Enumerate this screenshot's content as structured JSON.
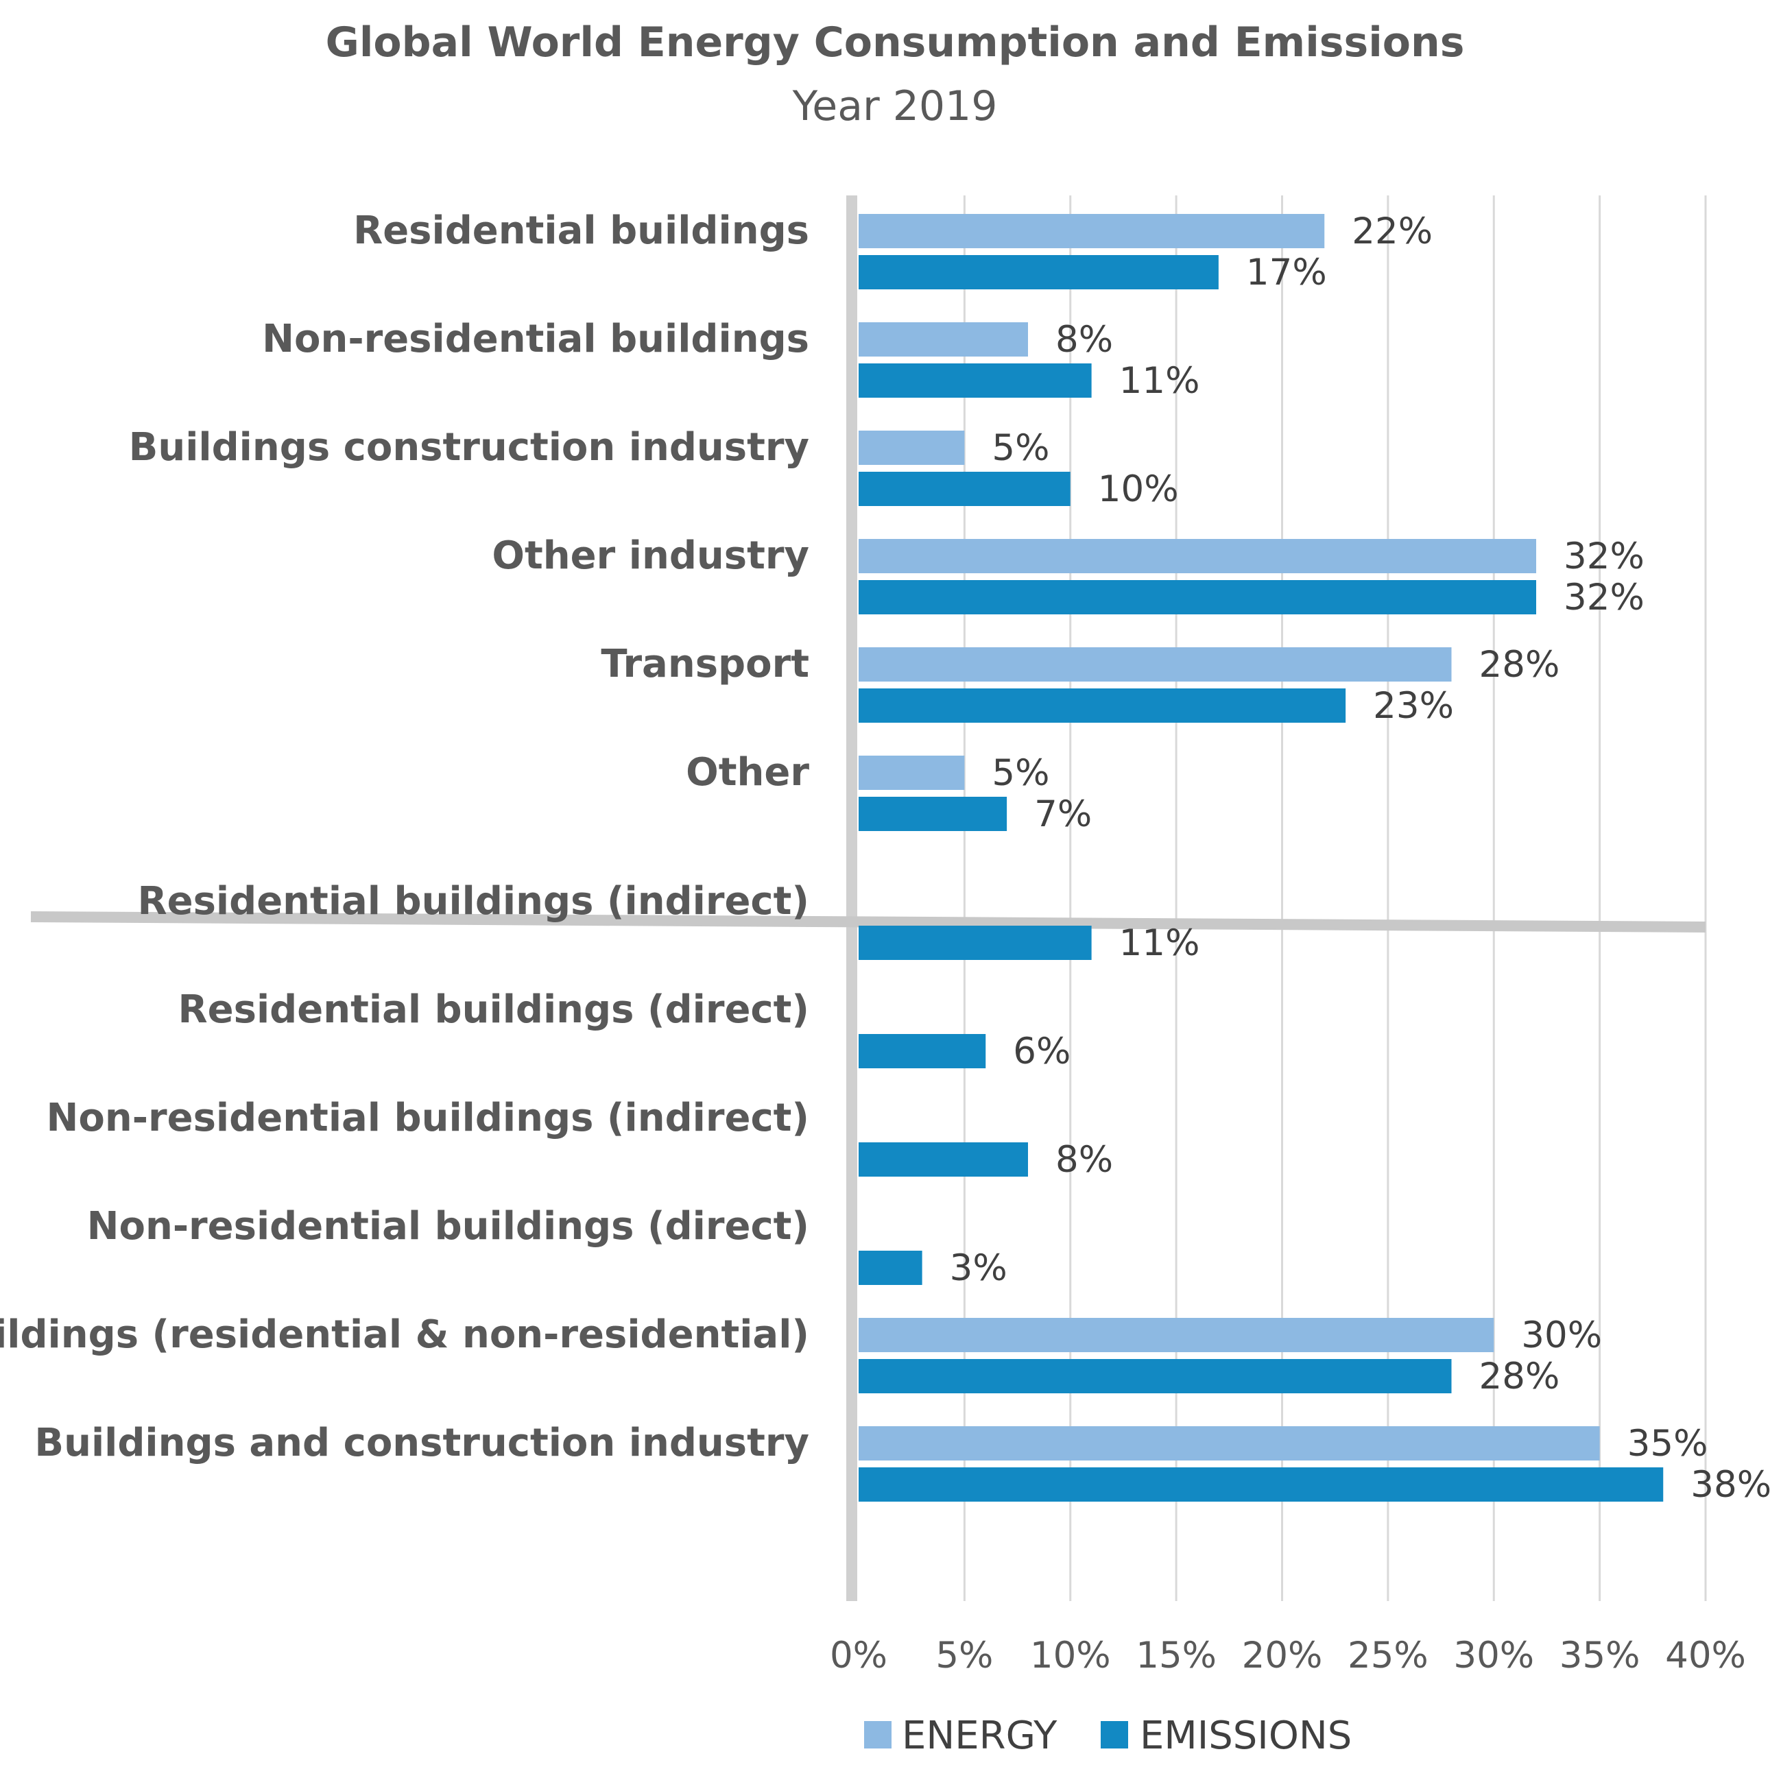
{
  "chart_data": {
    "type": "bar",
    "orientation": "horizontal",
    "title": "Global World Energy Consumption and Emissions",
    "subtitle": "Year 2019",
    "xlim": [
      0,
      40
    ],
    "xticks": [
      0,
      5,
      10,
      15,
      20,
      25,
      30,
      35,
      40
    ],
    "tick_format": "percent",
    "grid": true,
    "legend_position": "bottom",
    "colors": {
      "energy": "#8DB9E2",
      "emissions": "#1289C3",
      "grid": "#D9D9D9",
      "axis": "#D0D0D0",
      "separator": "#C8C8C8"
    },
    "series": [
      {
        "key": "energy",
        "name": "ENERGY"
      },
      {
        "key": "emissions",
        "name": "EMISSIONS"
      }
    ],
    "groups": [
      {
        "categories": [
          {
            "label": "Residential buildings",
            "energy": 22,
            "emissions": 17
          },
          {
            "label": "Non-residential buildings",
            "energy": 8,
            "emissions": 11
          },
          {
            "label": "Buildings construction industry",
            "energy": 5,
            "emissions": 10
          },
          {
            "label": "Other industry",
            "energy": 32,
            "emissions": 32
          },
          {
            "label": "Transport",
            "energy": 28,
            "emissions": 23
          },
          {
            "label": "Other",
            "energy": 5,
            "emissions": 7
          }
        ]
      },
      {
        "categories": [
          {
            "label": "Residential buildings (indirect)",
            "energy": null,
            "emissions": 11
          },
          {
            "label": "Residential buildings (direct)",
            "energy": null,
            "emissions": 6
          },
          {
            "label": "Non-residential buildings (indirect)",
            "energy": null,
            "emissions": 8
          },
          {
            "label": "Non-residential buildings (direct)",
            "energy": null,
            "emissions": 3
          },
          {
            "label": "Buildings (residential & non-residential)",
            "energy": 30,
            "emissions": 28
          },
          {
            "label": "Buildings and construction industry",
            "energy": 35,
            "emissions": 38
          }
        ]
      }
    ]
  }
}
